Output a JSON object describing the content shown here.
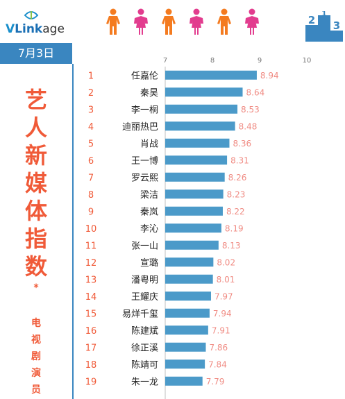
{
  "header": {
    "logo": {
      "v": "V",
      "link": "Link",
      "age": "age"
    },
    "person_icon": "person-icon",
    "colors": {
      "orange": "#f47b20",
      "pink": "#e23c8e"
    },
    "podium_icon": "podium-icon",
    "podium_digits": [
      "2",
      "1",
      "3"
    ]
  },
  "date": "7月3日",
  "title_chars": [
    "艺",
    "人",
    "新",
    "媒",
    "体",
    "指",
    "数"
  ],
  "star": "*",
  "subtitle_chars": [
    "电",
    "视",
    "剧",
    "演",
    "员"
  ],
  "chart_data": {
    "type": "bar",
    "orientation": "horizontal",
    "xlim": [
      7,
      10
    ],
    "xticks": [
      "7",
      "8",
      "9",
      "10"
    ],
    "bar_color": "#4b9ac9",
    "label_color": "#f08c84",
    "categories": [
      "任嘉伦",
      "秦昊",
      "李一桐",
      "迪丽热巴",
      "肖战",
      "王一博",
      "罗云熙",
      "梁洁",
      "秦岚",
      "李沁",
      "张一山",
      "宣璐",
      "潘粤明",
      "王耀庆",
      "易烊千玺",
      "陈建斌",
      "徐正溪",
      "陈靖可",
      "朱一龙"
    ],
    "ranks": [
      "1",
      "2",
      "3",
      "4",
      "5",
      "6",
      "7",
      "8",
      "9",
      "10",
      "11",
      "12",
      "13",
      "14",
      "15",
      "16",
      "17",
      "18",
      "19"
    ],
    "values": [
      8.94,
      8.64,
      8.53,
      8.48,
      8.36,
      8.31,
      8.26,
      8.23,
      8.22,
      8.19,
      8.13,
      8.02,
      8.01,
      7.97,
      7.94,
      7.91,
      7.86,
      7.84,
      7.79
    ],
    "value_labels": [
      "8.94",
      "8.64",
      "8.53",
      "8.48",
      "8.36",
      "8.31",
      "8.26",
      "8.23",
      "8.22",
      "8.19",
      "8.13",
      "8.02",
      "8.01",
      "7.97",
      "7.94",
      "7.91",
      "7.86",
      "7.84",
      "7.79"
    ]
  }
}
